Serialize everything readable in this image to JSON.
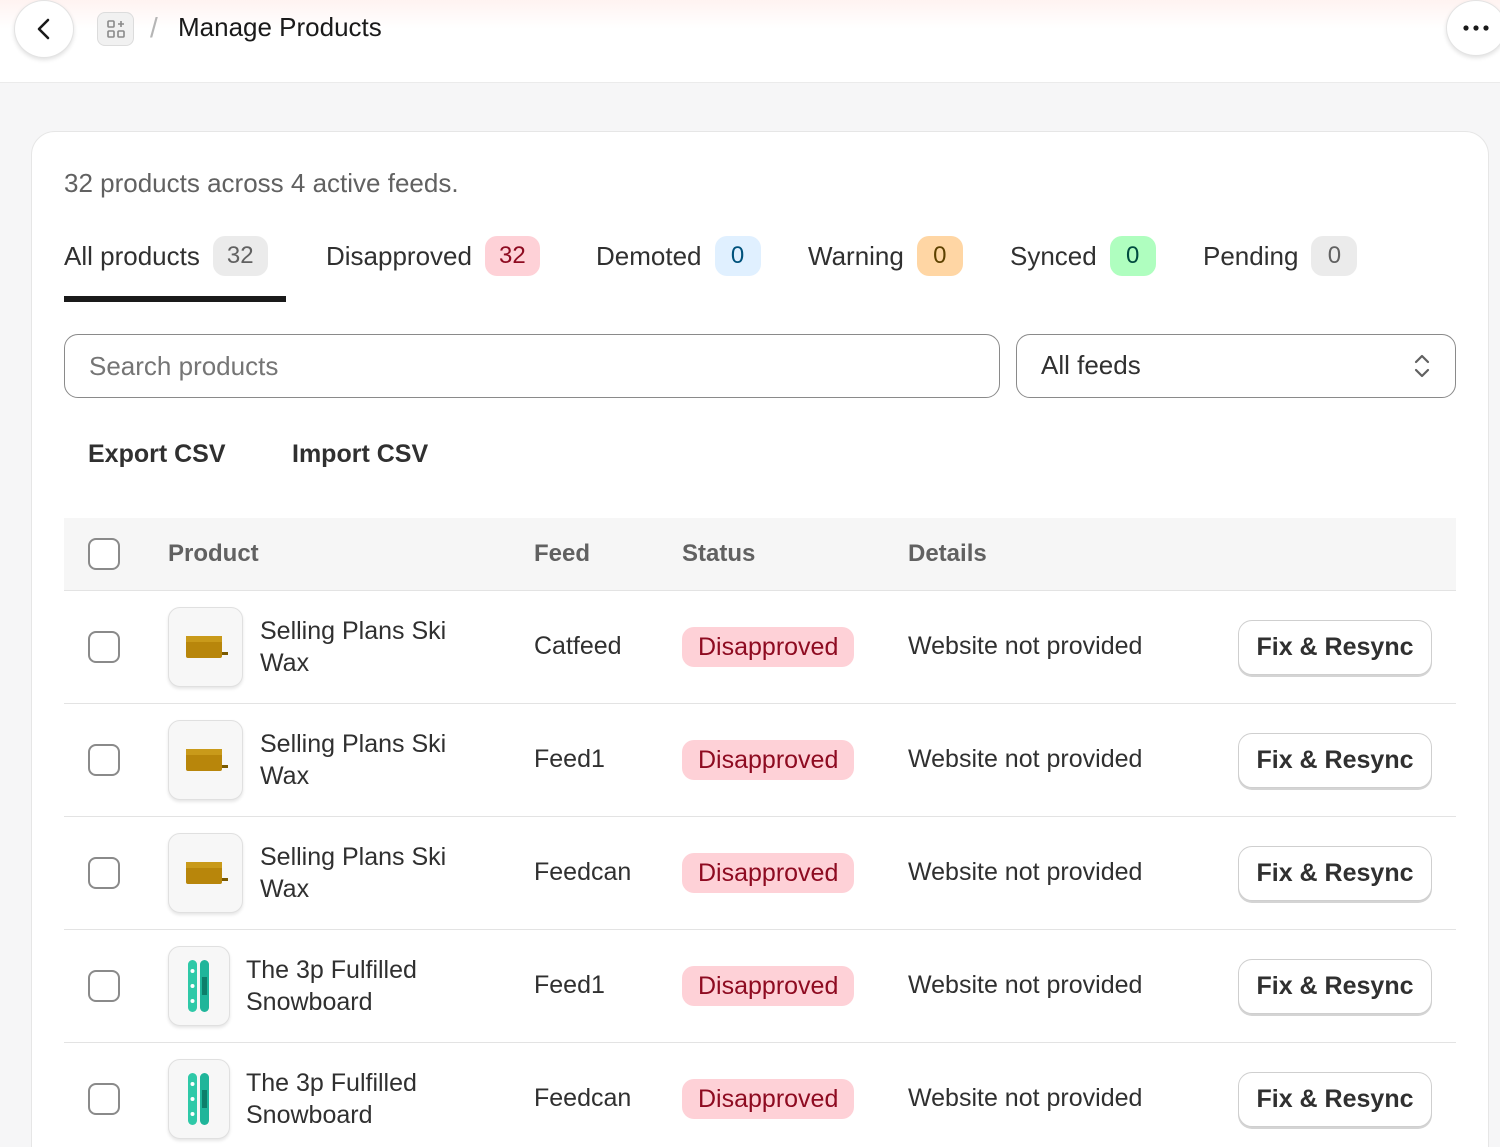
{
  "header": {
    "title": "Manage Products",
    "separator": "/",
    "icons": {
      "back": "chevron-left-icon",
      "app": "apps-grid-icon",
      "more": "ellipsis-icon"
    }
  },
  "summary": "32 products across 4 active feeds.",
  "tabs": [
    {
      "label": "All products",
      "count": "32",
      "active": true,
      "badge_bg": "#ebebeb",
      "badge_fg": "#616161"
    },
    {
      "label": "Disapproved",
      "count": "32",
      "active": false,
      "badge_bg": "#fed1d7",
      "badge_fg": "#8e0b21"
    },
    {
      "label": "Demoted",
      "count": "0",
      "active": false,
      "badge_bg": "#e0f0ff",
      "badge_fg": "#00527c"
    },
    {
      "label": "Warning",
      "count": "0",
      "active": false,
      "badge_bg": "#ffd6a4",
      "badge_fg": "#5e4200"
    },
    {
      "label": "Synced",
      "count": "0",
      "active": false,
      "badge_bg": "#affebf",
      "badge_fg": "#014b40"
    },
    {
      "label": "Pending",
      "count": "0",
      "active": false,
      "badge_bg": "#ebebeb",
      "badge_fg": "#616161"
    }
  ],
  "search": {
    "placeholder": "Search products"
  },
  "feed_select": {
    "value": "All feeds"
  },
  "actions": {
    "export": "Export CSV",
    "import": "Import CSV"
  },
  "table": {
    "headers": {
      "product": "Product",
      "feed": "Feed",
      "status": "Status",
      "details": "Details"
    },
    "rows": [
      {
        "name_line1": "Selling Plans Ski",
        "name_line2": "Wax",
        "thumb": "ski-wax-icon",
        "feed": "Catfeed",
        "status": "Disapproved",
        "details": "Website not provided",
        "action": "Fix & Resync"
      },
      {
        "name_line1": "Selling Plans Ski",
        "name_line2": "Wax",
        "thumb": "ski-wax-icon",
        "feed": "Feed1",
        "status": "Disapproved",
        "details": "Website not provided",
        "action": "Fix & Resync"
      },
      {
        "name_line1": "Selling Plans Ski",
        "name_line2": "Wax",
        "thumb": "ski-wax-icon",
        "feed": "Feedcan",
        "status": "Disapproved",
        "details": "Website not provided",
        "action": "Fix & Resync"
      },
      {
        "name_line1": "The 3p Fulfilled",
        "name_line2": "Snowboard",
        "thumb": "snowboard-icon",
        "feed": "Feed1",
        "status": "Disapproved",
        "details": "Website not provided",
        "action": "Fix & Resync"
      },
      {
        "name_line1": "The 3p Fulfilled",
        "name_line2": "Snowboard",
        "thumb": "snowboard-icon",
        "feed": "Feedcan",
        "status": "Disapproved",
        "details": "Website not provided",
        "action": "Fix & Resync"
      }
    ]
  }
}
